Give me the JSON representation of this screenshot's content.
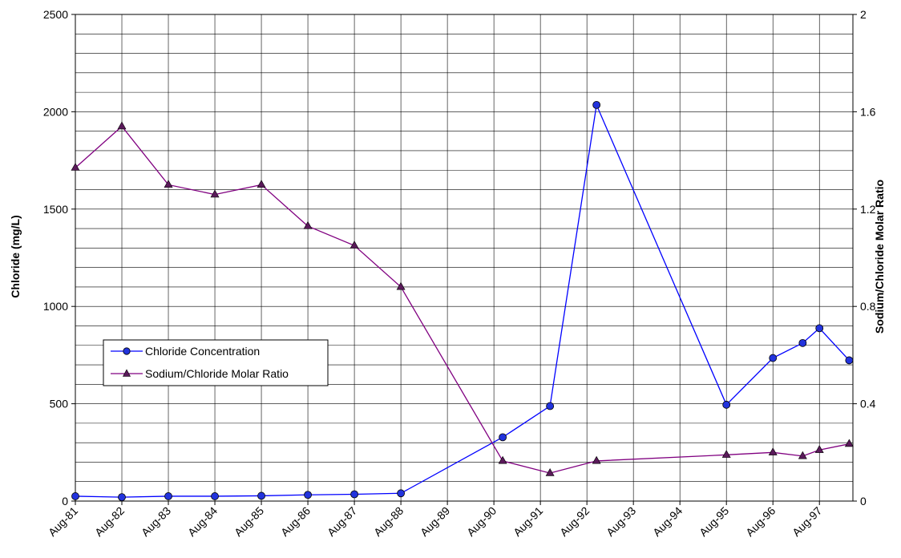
{
  "chart_data": {
    "type": "line",
    "x_categories": [
      "Aug-81",
      "Aug-82",
      "Aug-83",
      "Aug-84",
      "Aug-85",
      "Aug-86",
      "Aug-87",
      "Aug-88",
      "Aug-89",
      "Aug-90",
      "Aug-91",
      "Aug-92",
      "Aug-93",
      "Aug-94",
      "Aug-95",
      "Aug-96",
      "Aug-97"
    ],
    "y_left": {
      "label": "Chloride (mg/L)",
      "range": [
        0,
        2500
      ],
      "ticks": [
        "0",
        "500",
        "1000",
        "1500",
        "2000",
        "2500"
      ]
    },
    "y_right": {
      "label": "Sodium/Chloride Molar Ratio",
      "range": [
        0,
        2
      ],
      "ticks": [
        "0",
        "0.4",
        "0.8",
        "1.2",
        "1.6",
        "2"
      ]
    },
    "grid": true,
    "legend_position": "left-middle",
    "series": [
      {
        "name": "Chloride Concentration",
        "axis": "left",
        "color": "#0000ff",
        "marker": "circle",
        "marker_color": "#2233dd",
        "points": [
          {
            "x": "Aug-81",
            "y": 25
          },
          {
            "x": "Aug-82",
            "y": 20
          },
          {
            "x": "Aug-83",
            "y": 25
          },
          {
            "x": "Aug-84",
            "y": 25
          },
          {
            "x": "Aug-85",
            "y": 27
          },
          {
            "x": "Aug-86",
            "y": 32
          },
          {
            "x": "Aug-87",
            "y": 35
          },
          {
            "x": "Aug-88",
            "y": 40
          },
          {
            "x": "Aug-90",
            "y": 328
          },
          {
            "x": "Aug-91",
            "y": 488
          },
          {
            "x": "Aug-92",
            "y": 2035
          },
          {
            "x": "Aug-95",
            "y": 495
          },
          {
            "x": "Aug-96",
            "y": 735
          },
          {
            "x": "Aug-96",
            "y": 812
          },
          {
            "x": "Aug-97",
            "y": 888
          },
          {
            "x": "Aug-97",
            "y": 723
          }
        ]
      },
      {
        "name": "Sodium/Chloride Molar Ratio",
        "axis": "right",
        "color": "#800080",
        "marker": "triangle",
        "marker_color": "#5a1a5a",
        "points": [
          {
            "x": "Aug-81",
            "y": 1.37
          },
          {
            "x": "Aug-82",
            "y": 1.54
          },
          {
            "x": "Aug-83",
            "y": 1.3
          },
          {
            "x": "Aug-84",
            "y": 1.26
          },
          {
            "x": "Aug-85",
            "y": 1.3
          },
          {
            "x": "Aug-86",
            "y": 1.13
          },
          {
            "x": "Aug-87",
            "y": 1.05
          },
          {
            "x": "Aug-88",
            "y": 0.88
          },
          {
            "x": "Aug-90",
            "y": 0.165
          },
          {
            "x": "Aug-91",
            "y": 0.115
          },
          {
            "x": "Aug-92",
            "y": 0.165
          },
          {
            "x": "Aug-95",
            "y": 0.19
          },
          {
            "x": "Aug-96",
            "y": 0.2
          },
          {
            "x": "Aug-96",
            "y": 0.185
          },
          {
            "x": "Aug-97",
            "y": 0.21
          },
          {
            "x": "Aug-97",
            "y": 0.235
          }
        ]
      }
    ]
  }
}
